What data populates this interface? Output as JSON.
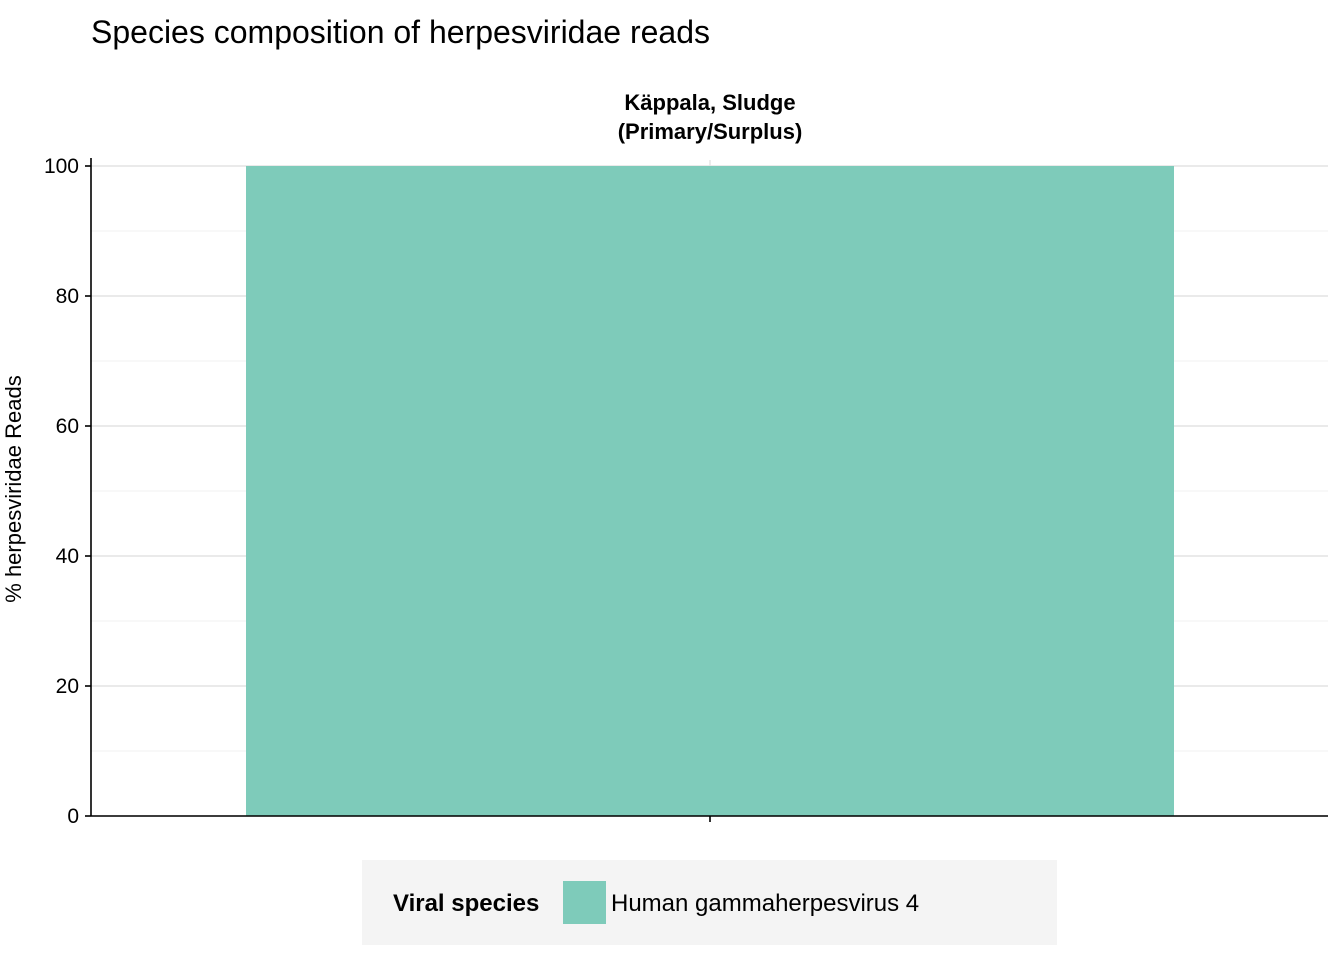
{
  "chart_data": {
    "type": "bar",
    "title": "Species composition of herpesviridae reads",
    "facet_label": [
      "Käppala, Sludge",
      "(Primary/Surplus)"
    ],
    "xlabel": "",
    "ylabel": "% herpesviridae Reads",
    "ylim": [
      0,
      100
    ],
    "yticks": [
      0,
      20,
      40,
      60,
      80,
      100
    ],
    "yticks_minor": [
      10,
      30,
      50,
      70,
      90
    ],
    "categories": [
      "Käppala, Sludge (Primary/Surplus)"
    ],
    "series": [
      {
        "name": "Human gammaherpesvirus 4",
        "color": "#7ecbba",
        "values": [
          100
        ]
      }
    ],
    "grid": true,
    "legend": {
      "title": "Viral species",
      "placement": "bottom"
    }
  }
}
